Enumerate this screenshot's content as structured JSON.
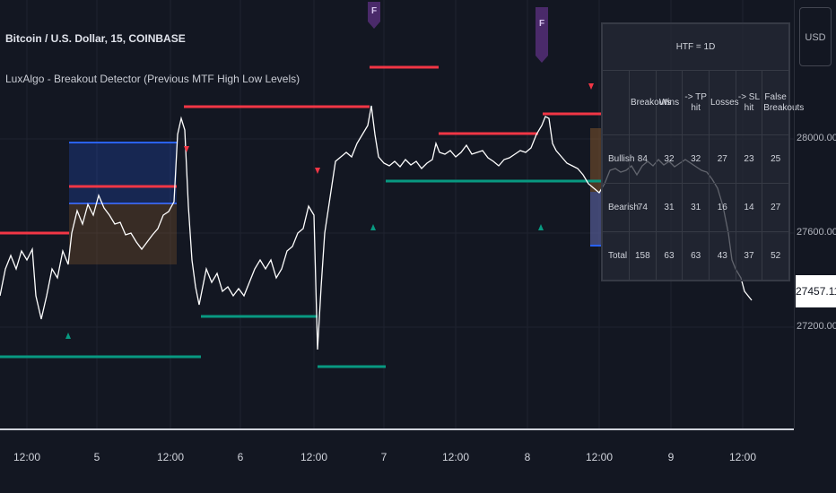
{
  "header": {
    "symbol_title": "Bitcoin / U.S. Dollar, 15, COINBASE",
    "indicator_name": "LuxAlgo - Breakout Detector (Previous MTF High Low Levels)"
  },
  "price_scale": {
    "currency": "USD",
    "labels": [
      "28000.00",
      "27600.00",
      "27200.00"
    ],
    "last_price": "27457.11"
  },
  "time_axis": {
    "labels": [
      "12:00",
      "5",
      "12:00",
      "6",
      "12:00",
      "7",
      "12:00",
      "8",
      "12:00",
      "9",
      "12:00"
    ]
  },
  "event_flags": [
    "F",
    "F"
  ],
  "stats_table": {
    "title": "HTF = 1D",
    "columns": [
      "Breakouts",
      "Wins",
      "-> TP hit",
      "Losses",
      "-> SL hit",
      "False Breakouts"
    ],
    "rows": [
      {
        "label": "Bullish",
        "values": [
          "84",
          "32",
          "32",
          "27",
          "23",
          "25"
        ]
      },
      {
        "label": "Bearish",
        "values": [
          "74",
          "31",
          "31",
          "16",
          "14",
          "27"
        ]
      },
      {
        "label": "Total",
        "values": [
          "158",
          "63",
          "63",
          "43",
          "37",
          "52"
        ]
      }
    ]
  },
  "colors": {
    "background": "#131722",
    "resistance": "#f23645",
    "support": "#089981",
    "bull_box": "#2962ff",
    "bear_box": "#8a5a2b",
    "flag": "#4a2a6a",
    "price_line": "#ffffff"
  }
}
